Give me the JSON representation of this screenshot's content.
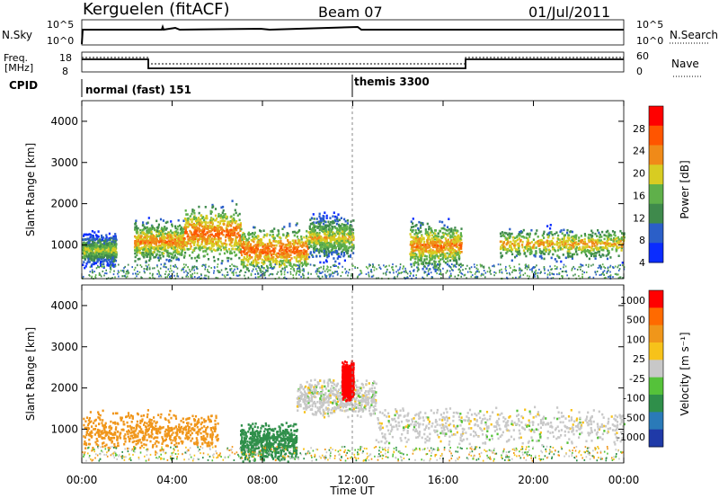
{
  "header": {
    "station": "Kerguelen (fitACF)",
    "beam": "Beam 07",
    "date": "01/Jul/2011"
  },
  "sky_panel": {
    "left_label": "N.Sky",
    "right_label": "N.Search",
    "left_ticks": [
      "10^5",
      "10^0"
    ],
    "right_ticks": [
      "10^5",
      "10^0"
    ]
  },
  "freq_panel": {
    "left_label_1": "Freq.",
    "left_label_2": "[MHz]",
    "right_label": "Nave",
    "left_ticks": [
      "18",
      "8"
    ],
    "right_ticks": [
      "60",
      "0"
    ]
  },
  "cpid": {
    "label": "CPID",
    "modes": [
      {
        "text": "normal (fast) 151",
        "start_hour": 0
      },
      {
        "text": "themis 3300",
        "start_hour": 12
      }
    ]
  },
  "x_axis": {
    "title": "Time UT",
    "range_hours": [
      0,
      24
    ],
    "ticks": [
      "00:00",
      "04:00",
      "08:00",
      "12:00",
      "16:00",
      "20:00",
      "00:00"
    ]
  },
  "power_panel": {
    "ylabel": "Slant Range [km]",
    "yticks": [
      "4000",
      "3000",
      "2000",
      "1000"
    ],
    "colorbar_label": "Power [dB]",
    "colorbar_ticks": [
      "28",
      "24",
      "20",
      "16",
      "12",
      "8",
      "4"
    ],
    "colors": [
      "#0a2cff",
      "#2b5fc8",
      "#3f8a4c",
      "#5fb04a",
      "#d8cc22",
      "#f08a18",
      "#ff5500",
      "#ff0000"
    ]
  },
  "velocity_panel": {
    "ylabel": "Slant Range [km]",
    "yticks": [
      "4000",
      "3000",
      "2000",
      "1000"
    ],
    "colorbar_label": "Velocity [m s⁻¹]",
    "colorbar_ticks": [
      "1000",
      "500",
      "100",
      "25",
      "-25",
      "-100",
      "-500",
      "-1000"
    ],
    "colors": [
      "#1f3aa8",
      "#2a7ab8",
      "#2f8f4a",
      "#55c23a",
      "#c8c8c8",
      "#f7c21a",
      "#f0961a",
      "#ff6a00",
      "#ff0000"
    ]
  },
  "chart_data": {
    "type": "heatmap",
    "x_unit": "hours UT",
    "y_unit": "slant range km",
    "xlim": [
      0,
      24
    ],
    "ylim": [
      180,
      4500
    ],
    "power_features": [
      {
        "start_hour": 0.0,
        "end_hour": 1.5,
        "range_center_km": 900,
        "range_spread_km": 250,
        "power_db": 20
      },
      {
        "start_hour": 2.3,
        "end_hour": 4.5,
        "range_center_km": 1100,
        "range_spread_km": 300,
        "power_db": 26
      },
      {
        "start_hour": 4.5,
        "end_hour": 7.0,
        "range_center_km": 1300,
        "range_spread_km": 400,
        "power_db": 28
      },
      {
        "start_hour": 7.0,
        "end_hour": 10.0,
        "range_center_km": 900,
        "range_spread_km": 350,
        "power_db": 28
      },
      {
        "start_hour": 10.0,
        "end_hour": 12.0,
        "range_center_km": 1200,
        "range_spread_km": 350,
        "power_db": 22
      },
      {
        "start_hour": 14.5,
        "end_hour": 16.8,
        "range_center_km": 1000,
        "range_spread_km": 350,
        "power_db": 26
      },
      {
        "start_hour": 18.5,
        "end_hour": 24.0,
        "range_center_km": 1050,
        "range_spread_km": 250,
        "power_db": 24
      }
    ],
    "velocity_features": [
      {
        "start_hour": 0.0,
        "end_hour": 6.0,
        "range_center_km": 1000,
        "velocity_ms": -100
      },
      {
        "start_hour": 7.0,
        "end_hour": 9.5,
        "range_center_km": 700,
        "velocity_ms": 100
      },
      {
        "start_hour": 9.5,
        "end_hour": 13.0,
        "range_center_km": 1800,
        "velocity_ms": 0
      },
      {
        "start_hour": 11.5,
        "end_hour": 12.0,
        "range_center_km": 2200,
        "velocity_ms": -1000
      },
      {
        "start_hour": 13.0,
        "end_hour": 24.0,
        "range_center_km": 1100,
        "velocity_ms": 0
      }
    ],
    "frequency_mhz": [
      {
        "start_hour": 0.0,
        "end_hour": 3.0,
        "value": 16
      },
      {
        "start_hour": 3.0,
        "end_hour": 17.0,
        "value": 12
      },
      {
        "start_hour": 17.0,
        "end_hour": 24.0,
        "value": 16
      }
    ]
  }
}
